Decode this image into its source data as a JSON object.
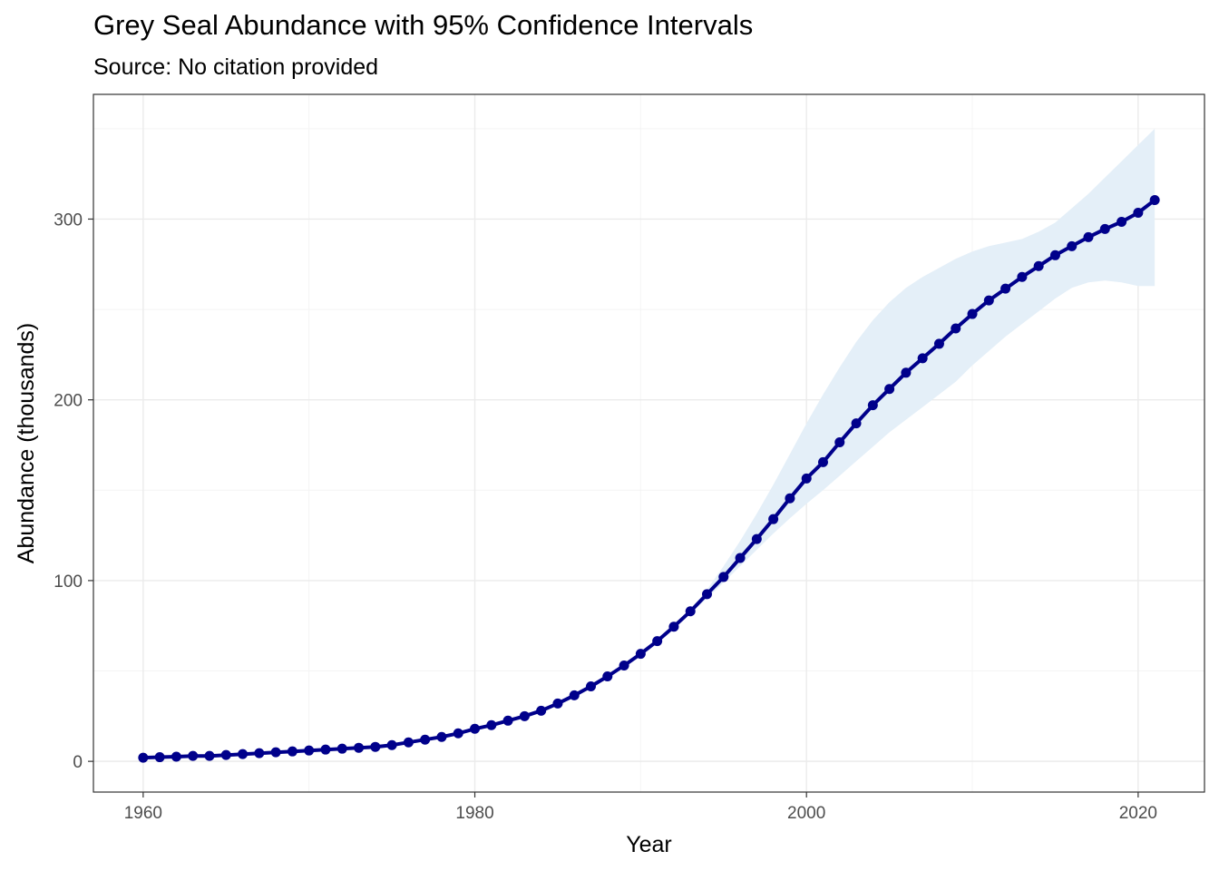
{
  "chart_data": {
    "type": "line",
    "title": "Grey Seal Abundance with 95% Confidence Intervals",
    "subtitle": "Source: No citation provided",
    "xlabel": "Year",
    "ylabel": "Abundance (thousands)",
    "xlim": [
      1957,
      2024
    ],
    "ylim": [
      -17,
      369
    ],
    "x_ticks": [
      1960,
      1980,
      2000,
      2020
    ],
    "y_ticks": [
      0,
      100,
      200,
      300
    ],
    "grid": true,
    "legend": "none",
    "colors": {
      "line": "#00008b",
      "ribbon": "#e4eff8",
      "panel_border": "#333333",
      "grid_major": "#ebebeb",
      "grid_minor": "#f4f4f4"
    },
    "series": [
      {
        "x": [
          1960,
          1961,
          1962,
          1963,
          1964,
          1965,
          1966,
          1967,
          1968,
          1969,
          1970,
          1971,
          1972,
          1973,
          1974,
          1975,
          1976,
          1977,
          1978,
          1979,
          1980,
          1981,
          1982,
          1983,
          1984,
          1985,
          1986,
          1987,
          1988,
          1989,
          1990,
          1991,
          1992,
          1993,
          1994,
          1995,
          1996,
          1997,
          1998,
          1999,
          2000,
          2001,
          2002,
          2003,
          2004,
          2005,
          2006,
          2007,
          2008,
          2009,
          2010,
          2011,
          2012,
          2013,
          2014,
          2015,
          2016,
          2017,
          2018,
          2019,
          2020,
          2021
        ],
        "values": [
          2.0,
          2.3,
          2.6,
          3.0,
          3.0,
          3.5,
          4.0,
          4.5,
          5.0,
          5.5,
          6.0,
          6.5,
          7.0,
          7.5,
          8.0,
          9.0,
          10.5,
          12.0,
          13.5,
          15.5,
          18.0,
          20.0,
          22.5,
          25.0,
          28.0,
          32.0,
          36.5,
          41.5,
          47.0,
          53.0,
          59.5,
          66.5,
          74.5,
          83.0,
          92.5,
          102.0,
          112.5,
          123.0,
          134.0,
          145.5,
          156.5,
          165.5,
          176.5,
          187.0,
          197.0,
          206.0,
          215.0,
          223.0,
          231.0,
          239.5,
          247.5,
          255.0,
          261.5,
          268.0,
          274.0,
          280.0,
          285.0,
          290.0,
          294.5,
          298.5,
          303.5,
          310.5
        ],
        "lower": [
          2.0,
          2.3,
          2.6,
          3.0,
          3.0,
          3.5,
          4.0,
          4.5,
          5.0,
          5.5,
          6.0,
          6.5,
          7.0,
          7.5,
          8.0,
          9.0,
          10.5,
          12.0,
          13.5,
          15.5,
          18.0,
          20.0,
          22.5,
          25.0,
          28.0,
          32.0,
          36.5,
          41.5,
          47.0,
          53.0,
          59.5,
          66.5,
          74.5,
          82.0,
          90.0,
          99.0,
          108.0,
          117.0,
          126.0,
          134.5,
          142.5,
          150.0,
          158.0,
          166.0,
          174.0,
          182.0,
          189.0,
          196.0,
          203.0,
          210.0,
          219.0,
          227.0,
          235.0,
          242.0,
          249.0,
          256.0,
          262.0,
          265.0,
          266.0,
          265.0,
          263.0,
          263.0
        ],
        "upper": [
          2.0,
          2.3,
          2.6,
          3.0,
          3.0,
          3.5,
          4.0,
          4.5,
          5.0,
          5.5,
          6.0,
          6.5,
          7.0,
          7.5,
          8.0,
          9.0,
          10.5,
          12.0,
          13.5,
          15.5,
          18.0,
          20.0,
          22.5,
          25.0,
          28.0,
          32.0,
          36.5,
          41.5,
          47.0,
          53.0,
          59.5,
          66.5,
          74.5,
          84.0,
          95.0,
          108.0,
          122.0,
          137.0,
          153.0,
          170.0,
          187.0,
          203.0,
          218.0,
          232.0,
          244.0,
          254.0,
          262.0,
          268.0,
          273.0,
          278.0,
          282.0,
          285.0,
          287.0,
          289.0,
          293.0,
          298.0,
          306.0,
          314.0,
          323.0,
          332.0,
          341.0,
          350.0
        ]
      }
    ]
  }
}
